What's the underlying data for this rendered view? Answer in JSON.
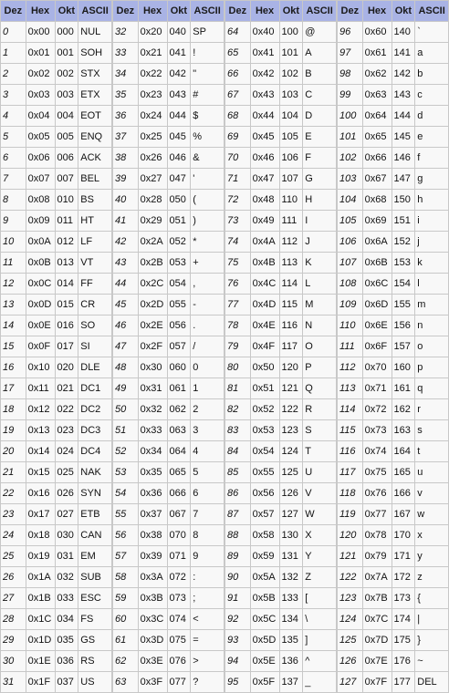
{
  "headers": [
    "Dez",
    "Hex",
    "Okt",
    "ASCII"
  ],
  "blocks": [
    [
      [
        "0",
        "0x00",
        "000",
        "NUL"
      ],
      [
        "1",
        "0x01",
        "001",
        "SOH"
      ],
      [
        "2",
        "0x02",
        "002",
        "STX"
      ],
      [
        "3",
        "0x03",
        "003",
        "ETX"
      ],
      [
        "4",
        "0x04",
        "004",
        "EOT"
      ],
      [
        "5",
        "0x05",
        "005",
        "ENQ"
      ],
      [
        "6",
        "0x06",
        "006",
        "ACK"
      ],
      [
        "7",
        "0x07",
        "007",
        "BEL"
      ],
      [
        "8",
        "0x08",
        "010",
        "BS"
      ],
      [
        "9",
        "0x09",
        "011",
        "HT"
      ],
      [
        "10",
        "0x0A",
        "012",
        "LF"
      ],
      [
        "11",
        "0x0B",
        "013",
        "VT"
      ],
      [
        "12",
        "0x0C",
        "014",
        "FF"
      ],
      [
        "13",
        "0x0D",
        "015",
        "CR"
      ],
      [
        "14",
        "0x0E",
        "016",
        "SO"
      ],
      [
        "15",
        "0x0F",
        "017",
        "SI"
      ],
      [
        "16",
        "0x10",
        "020",
        "DLE"
      ],
      [
        "17",
        "0x11",
        "021",
        "DC1"
      ],
      [
        "18",
        "0x12",
        "022",
        "DC2"
      ],
      [
        "19",
        "0x13",
        "023",
        "DC3"
      ],
      [
        "20",
        "0x14",
        "024",
        "DC4"
      ],
      [
        "21",
        "0x15",
        "025",
        "NAK"
      ],
      [
        "22",
        "0x16",
        "026",
        "SYN"
      ],
      [
        "23",
        "0x17",
        "027",
        "ETB"
      ],
      [
        "24",
        "0x18",
        "030",
        "CAN"
      ],
      [
        "25",
        "0x19",
        "031",
        "EM"
      ],
      [
        "26",
        "0x1A",
        "032",
        "SUB"
      ],
      [
        "27",
        "0x1B",
        "033",
        "ESC"
      ],
      [
        "28",
        "0x1C",
        "034",
        "FS"
      ],
      [
        "29",
        "0x1D",
        "035",
        "GS"
      ],
      [
        "30",
        "0x1E",
        "036",
        "RS"
      ],
      [
        "31",
        "0x1F",
        "037",
        "US"
      ]
    ],
    [
      [
        "32",
        "0x20",
        "040",
        "SP"
      ],
      [
        "33",
        "0x21",
        "041",
        "!"
      ],
      [
        "34",
        "0x22",
        "042",
        "\""
      ],
      [
        "35",
        "0x23",
        "043",
        "#"
      ],
      [
        "36",
        "0x24",
        "044",
        "$"
      ],
      [
        "37",
        "0x25",
        "045",
        "%"
      ],
      [
        "38",
        "0x26",
        "046",
        "&"
      ],
      [
        "39",
        "0x27",
        "047",
        "'"
      ],
      [
        "40",
        "0x28",
        "050",
        "("
      ],
      [
        "41",
        "0x29",
        "051",
        ")"
      ],
      [
        "42",
        "0x2A",
        "052",
        "*"
      ],
      [
        "43",
        "0x2B",
        "053",
        "+"
      ],
      [
        "44",
        "0x2C",
        "054",
        ","
      ],
      [
        "45",
        "0x2D",
        "055",
        "-"
      ],
      [
        "46",
        "0x2E",
        "056",
        "."
      ],
      [
        "47",
        "0x2F",
        "057",
        "/"
      ],
      [
        "48",
        "0x30",
        "060",
        "0"
      ],
      [
        "49",
        "0x31",
        "061",
        "1"
      ],
      [
        "50",
        "0x32",
        "062",
        "2"
      ],
      [
        "51",
        "0x33",
        "063",
        "3"
      ],
      [
        "52",
        "0x34",
        "064",
        "4"
      ],
      [
        "53",
        "0x35",
        "065",
        "5"
      ],
      [
        "54",
        "0x36",
        "066",
        "6"
      ],
      [
        "55",
        "0x37",
        "067",
        "7"
      ],
      [
        "56",
        "0x38",
        "070",
        "8"
      ],
      [
        "57",
        "0x39",
        "071",
        "9"
      ],
      [
        "58",
        "0x3A",
        "072",
        ":"
      ],
      [
        "59",
        "0x3B",
        "073",
        ";"
      ],
      [
        "60",
        "0x3C",
        "074",
        "<"
      ],
      [
        "61",
        "0x3D",
        "075",
        "="
      ],
      [
        "62",
        "0x3E",
        "076",
        ">"
      ],
      [
        "63",
        "0x3F",
        "077",
        "?"
      ]
    ],
    [
      [
        "64",
        "0x40",
        "100",
        "@"
      ],
      [
        "65",
        "0x41",
        "101",
        "A"
      ],
      [
        "66",
        "0x42",
        "102",
        "B"
      ],
      [
        "67",
        "0x43",
        "103",
        "C"
      ],
      [
        "68",
        "0x44",
        "104",
        "D"
      ],
      [
        "69",
        "0x45",
        "105",
        "E"
      ],
      [
        "70",
        "0x46",
        "106",
        "F"
      ],
      [
        "71",
        "0x47",
        "107",
        "G"
      ],
      [
        "72",
        "0x48",
        "110",
        "H"
      ],
      [
        "73",
        "0x49",
        "111",
        "I"
      ],
      [
        "74",
        "0x4A",
        "112",
        "J"
      ],
      [
        "75",
        "0x4B",
        "113",
        "K"
      ],
      [
        "76",
        "0x4C",
        "114",
        "L"
      ],
      [
        "77",
        "0x4D",
        "115",
        "M"
      ],
      [
        "78",
        "0x4E",
        "116",
        "N"
      ],
      [
        "79",
        "0x4F",
        "117",
        "O"
      ],
      [
        "80",
        "0x50",
        "120",
        "P"
      ],
      [
        "81",
        "0x51",
        "121",
        "Q"
      ],
      [
        "82",
        "0x52",
        "122",
        "R"
      ],
      [
        "83",
        "0x53",
        "123",
        "S"
      ],
      [
        "84",
        "0x54",
        "124",
        "T"
      ],
      [
        "85",
        "0x55",
        "125",
        "U"
      ],
      [
        "86",
        "0x56",
        "126",
        "V"
      ],
      [
        "87",
        "0x57",
        "127",
        "W"
      ],
      [
        "88",
        "0x58",
        "130",
        "X"
      ],
      [
        "89",
        "0x59",
        "131",
        "Y"
      ],
      [
        "90",
        "0x5A",
        "132",
        "Z"
      ],
      [
        "91",
        "0x5B",
        "133",
        "["
      ],
      [
        "92",
        "0x5C",
        "134",
        "\\"
      ],
      [
        "93",
        "0x5D",
        "135",
        "]"
      ],
      [
        "94",
        "0x5E",
        "136",
        "^"
      ],
      [
        "95",
        "0x5F",
        "137",
        "_"
      ]
    ],
    [
      [
        "96",
        "0x60",
        "140",
        "`"
      ],
      [
        "97",
        "0x61",
        "141",
        "a"
      ],
      [
        "98",
        "0x62",
        "142",
        "b"
      ],
      [
        "99",
        "0x63",
        "143",
        "c"
      ],
      [
        "100",
        "0x64",
        "144",
        "d"
      ],
      [
        "101",
        "0x65",
        "145",
        "e"
      ],
      [
        "102",
        "0x66",
        "146",
        "f"
      ],
      [
        "103",
        "0x67",
        "147",
        "g"
      ],
      [
        "104",
        "0x68",
        "150",
        "h"
      ],
      [
        "105",
        "0x69",
        "151",
        "i"
      ],
      [
        "106",
        "0x6A",
        "152",
        "j"
      ],
      [
        "107",
        "0x6B",
        "153",
        "k"
      ],
      [
        "108",
        "0x6C",
        "154",
        "l"
      ],
      [
        "109",
        "0x6D",
        "155",
        "m"
      ],
      [
        "110",
        "0x6E",
        "156",
        "n"
      ],
      [
        "111",
        "0x6F",
        "157",
        "o"
      ],
      [
        "112",
        "0x70",
        "160",
        "p"
      ],
      [
        "113",
        "0x71",
        "161",
        "q"
      ],
      [
        "114",
        "0x72",
        "162",
        "r"
      ],
      [
        "115",
        "0x73",
        "163",
        "s"
      ],
      [
        "116",
        "0x74",
        "164",
        "t"
      ],
      [
        "117",
        "0x75",
        "165",
        "u"
      ],
      [
        "118",
        "0x76",
        "166",
        "v"
      ],
      [
        "119",
        "0x77",
        "167",
        "w"
      ],
      [
        "120",
        "0x78",
        "170",
        "x"
      ],
      [
        "121",
        "0x79",
        "171",
        "y"
      ],
      [
        "122",
        "0x7A",
        "172",
        "z"
      ],
      [
        "123",
        "0x7B",
        "173",
        "{"
      ],
      [
        "124",
        "0x7C",
        "174",
        "|"
      ],
      [
        "125",
        "0x7D",
        "175",
        "}"
      ],
      [
        "126",
        "0x7E",
        "176",
        "~"
      ],
      [
        "127",
        "0x7F",
        "177",
        "DEL"
      ]
    ]
  ],
  "colors": {
    "header_bg": "#a9b3e5",
    "cell_bg": "#f8f8f8",
    "border": "#c8c8c8"
  }
}
